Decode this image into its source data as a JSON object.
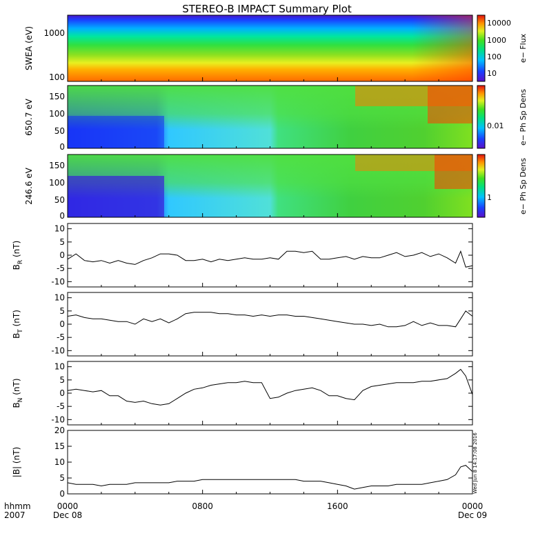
{
  "chart_data": {
    "type": "line",
    "title": "STEREO-B IMPACT Summary Plot",
    "stamp": "Wed Jun  8 14:17:08 2016",
    "time_axis": {
      "row_labels": [
        "hhmm",
        "2007"
      ],
      "ticks": [
        {
          "hour": 0,
          "label": "0000",
          "date": "Dec 08"
        },
        {
          "hour": 8,
          "label": "0800",
          "date": ""
        },
        {
          "hour": 16,
          "label": "1600",
          "date": ""
        },
        {
          "hour": 24,
          "label": "0000",
          "date": "Dec 09"
        }
      ],
      "range_hours": [
        0,
        24
      ]
    },
    "spectrograms": [
      {
        "ylabel": "SWEA (eV)",
        "cbar_label": "e− Flux",
        "cbar_ticks": [
          "10000",
          "1000",
          "100",
          "10"
        ],
        "ytick_labels": [
          "1000",
          "100"
        ]
      },
      {
        "ylabel": "650.7 eV",
        "cbar_label": "e− Ph Sp Dens",
        "cbar_ticks": [
          "0.01"
        ],
        "ytick_labels": [
          "150",
          "100",
          "50",
          "0"
        ]
      },
      {
        "ylabel": "246.6 eV",
        "cbar_label": "e− Ph Sp Dens",
        "cbar_ticks": [
          "1"
        ],
        "ytick_labels": [
          "150",
          "100",
          "50",
          "0"
        ]
      }
    ],
    "series": [
      {
        "name": "BR (nT)",
        "ylim": [
          -12,
          12
        ],
        "yticks": [
          -10,
          -5,
          0,
          5,
          10
        ],
        "hours": [
          0,
          0.5,
          1,
          1.5,
          2,
          2.5,
          3,
          3.5,
          4,
          4.5,
          5,
          5.5,
          6,
          6.5,
          7,
          7.5,
          8,
          8.5,
          9,
          9.5,
          10,
          10.5,
          11,
          11.5,
          12,
          12.5,
          13,
          13.5,
          14,
          14.5,
          15,
          15.5,
          16,
          16.5,
          17,
          17.5,
          18,
          18.5,
          19,
          19.5,
          20,
          20.5,
          21,
          21.5,
          22,
          22.5,
          23,
          23.3,
          23.6,
          24
        ],
        "values": [
          -1.5,
          0.5,
          -2,
          -2.5,
          -2,
          -3,
          -2,
          -3,
          -3.5,
          -2,
          -1,
          0.5,
          0.5,
          0,
          -2,
          -2,
          -1.5,
          -2.5,
          -1.5,
          -2,
          -1.5,
          -1,
          -1.5,
          -1.5,
          -1,
          -1.5,
          1.5,
          1.5,
          1,
          1.5,
          -1.5,
          -1.5,
          -1,
          -0.5,
          -1.5,
          -0.5,
          -1,
          -1,
          0,
          1,
          -0.5,
          0,
          1,
          -0.5,
          0.5,
          -1,
          -3,
          1.5,
          -4.5,
          -4
        ]
      },
      {
        "name": "BT (nT)",
        "ylim": [
          -12,
          12
        ],
        "yticks": [
          -10,
          -5,
          0,
          5,
          10
        ],
        "hours": [
          0,
          0.5,
          1,
          1.5,
          2,
          2.5,
          3,
          3.5,
          4,
          4.5,
          5,
          5.5,
          6,
          6.5,
          7,
          7.5,
          8,
          8.5,
          9,
          9.5,
          10,
          10.5,
          11,
          11.5,
          12,
          12.5,
          13,
          13.5,
          14,
          14.5,
          15,
          15.5,
          16,
          16.5,
          17,
          17.5,
          18,
          18.5,
          19,
          19.5,
          20,
          20.5,
          21,
          21.5,
          22,
          22.5,
          23,
          23.3,
          23.6,
          24
        ],
        "values": [
          3,
          3.5,
          2.5,
          2,
          2,
          1.5,
          1,
          1,
          0,
          2,
          1,
          2,
          0.5,
          2,
          4,
          4.5,
          4.5,
          4.5,
          4,
          4,
          3.5,
          3.5,
          3,
          3.5,
          3,
          3.5,
          3.5,
          3,
          3,
          2.5,
          2,
          1.5,
          1,
          0.5,
          0,
          0,
          -0.5,
          0,
          -1,
          -1,
          -0.5,
          1,
          -0.5,
          0.5,
          -0.5,
          -0.5,
          -1,
          2,
          5,
          3
        ]
      },
      {
        "name": "BN (nT)",
        "ylim": [
          -12,
          12
        ],
        "yticks": [
          -10,
          -5,
          0,
          5,
          10
        ],
        "hours": [
          0,
          0.5,
          1,
          1.5,
          2,
          2.5,
          3,
          3.5,
          4,
          4.5,
          5,
          5.5,
          6,
          6.5,
          7,
          7.5,
          8,
          8.5,
          9,
          9.5,
          10,
          10.5,
          11,
          11.5,
          12,
          12.5,
          13,
          13.5,
          14,
          14.5,
          15,
          15.5,
          16,
          16.5,
          17,
          17.5,
          18,
          18.5,
          19,
          19.5,
          20,
          20.5,
          21,
          21.5,
          22,
          22.5,
          23,
          23.3,
          23.6,
          24
        ],
        "values": [
          1,
          1.5,
          1,
          0.5,
          1,
          -1,
          -1,
          -3,
          -3.5,
          -3,
          -4,
          -4.5,
          -4,
          -2,
          0,
          1.5,
          2,
          3,
          3.5,
          4,
          4,
          4.5,
          4,
          4,
          -2,
          -1.5,
          0,
          1,
          1.5,
          2,
          1,
          -1,
          -1,
          -2,
          -2.5,
          1,
          2.5,
          3,
          3.5,
          4,
          4,
          4,
          4.5,
          4.5,
          5,
          5.5,
          7.5,
          9,
          6.5,
          -0.5
        ]
      },
      {
        "name": "|B| (nT)",
        "ylim": [
          0,
          20
        ],
        "yticks": [
          0,
          5,
          10,
          15,
          20
        ],
        "hours": [
          0,
          0.5,
          1,
          1.5,
          2,
          2.5,
          3,
          3.5,
          4,
          4.5,
          5,
          5.5,
          6,
          6.5,
          7,
          7.5,
          8,
          8.5,
          9,
          9.5,
          10,
          10.5,
          11,
          11.5,
          12,
          12.5,
          13,
          13.5,
          14,
          14.5,
          15,
          15.5,
          16,
          16.5,
          17,
          17.5,
          18,
          18.5,
          19,
          19.5,
          20,
          20.5,
          21,
          21.5,
          22,
          22.5,
          23,
          23.3,
          23.6,
          24
        ],
        "values": [
          3.5,
          3,
          3,
          3,
          2.5,
          3,
          3,
          3,
          3.5,
          3.5,
          3.5,
          3.5,
          3.5,
          4,
          4,
          4,
          4.5,
          4.5,
          4.5,
          4.5,
          4.5,
          4.5,
          4.5,
          4.5,
          4.5,
          4.5,
          4.5,
          4.5,
          4,
          4,
          4,
          3.5,
          3,
          2.5,
          1.5,
          2,
          2.5,
          2.5,
          2.5,
          3,
          3,
          3,
          3,
          3.5,
          4,
          4.5,
          6,
          8.5,
          9,
          7
        ]
      }
    ],
    "colormap": "rainbow",
    "grid": false
  }
}
